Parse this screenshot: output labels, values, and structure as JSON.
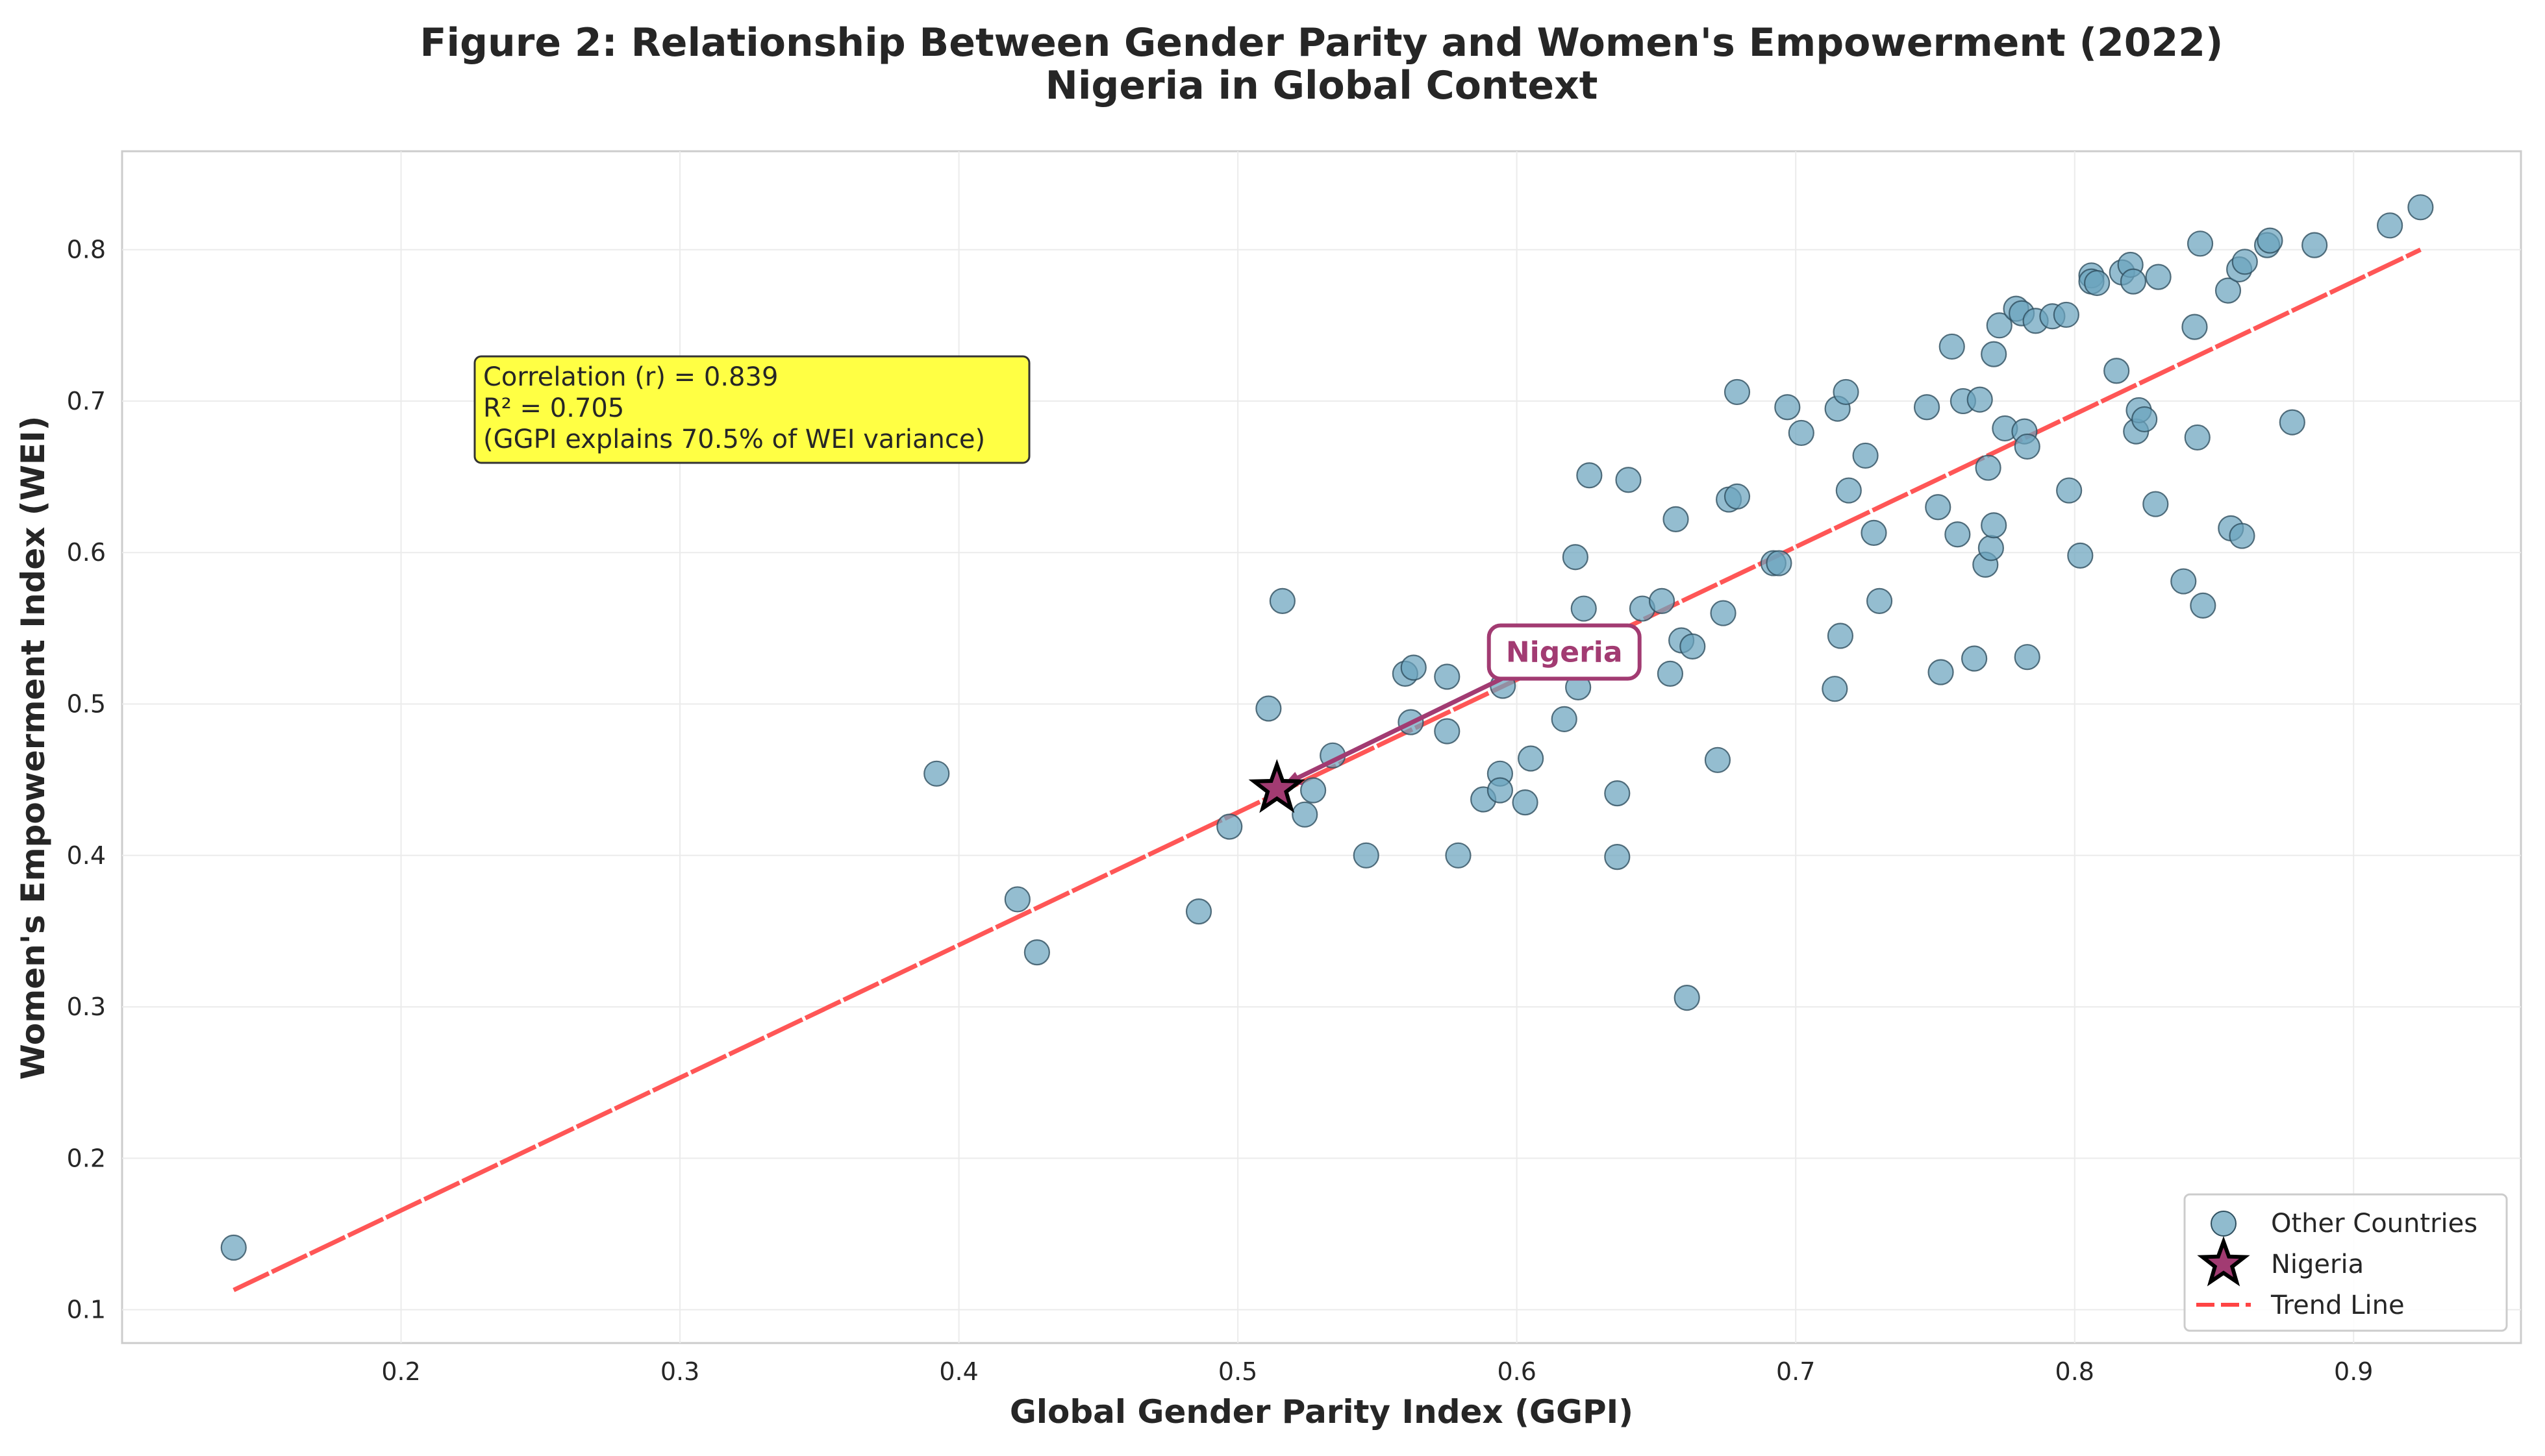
{
  "chart_data": {
    "type": "scatter",
    "title": "Figure 2: Relationship Between Gender Parity and Women's Empowerment (2022)",
    "subtitle": "Nigeria in Global Context",
    "xlabel": "Global Gender Parity Index (GGPI)",
    "ylabel": "Women's Empowerment Index (WEI)",
    "xlim": [
      0.1,
      0.96
    ],
    "ylim": [
      0.078,
      0.865
    ],
    "xticks": [
      0.2,
      0.3,
      0.4,
      0.5,
      0.6,
      0.7,
      0.8,
      0.9
    ],
    "xtick_labels": [
      "0.2",
      "0.3",
      "0.4",
      "0.5",
      "0.6",
      "0.7",
      "0.8",
      "0.9"
    ],
    "yticks": [
      0.1,
      0.2,
      0.3,
      0.4,
      0.5,
      0.6,
      0.7,
      0.8
    ],
    "ytick_labels": [
      "0.1",
      "0.2",
      "0.3",
      "0.4",
      "0.5",
      "0.6",
      "0.7",
      "0.8"
    ],
    "grid": true,
    "series": [
      {
        "name": "Other Countries",
        "color": "#6ba4be",
        "points": [
          [
            0.14,
            0.141
          ],
          [
            0.392,
            0.454
          ],
          [
            0.421,
            0.371
          ],
          [
            0.428,
            0.336
          ],
          [
            0.486,
            0.363
          ],
          [
            0.497,
            0.419
          ],
          [
            0.511,
            0.497
          ],
          [
            0.516,
            0.568
          ],
          [
            0.524,
            0.427
          ],
          [
            0.527,
            0.443
          ],
          [
            0.534,
            0.466
          ],
          [
            0.546,
            0.4
          ],
          [
            0.56,
            0.52
          ],
          [
            0.563,
            0.524
          ],
          [
            0.562,
            0.488
          ],
          [
            0.575,
            0.518
          ],
          [
            0.575,
            0.482
          ],
          [
            0.579,
            0.4
          ],
          [
            0.588,
            0.437
          ],
          [
            0.594,
            0.454
          ],
          [
            0.594,
            0.443
          ],
          [
            0.595,
            0.512
          ],
          [
            0.603,
            0.435
          ],
          [
            0.605,
            0.464
          ],
          [
            0.617,
            0.49
          ],
          [
            0.621,
            0.597
          ],
          [
            0.622,
            0.511
          ],
          [
            0.624,
            0.563
          ],
          [
            0.626,
            0.651
          ],
          [
            0.636,
            0.441
          ],
          [
            0.636,
            0.399
          ],
          [
            0.64,
            0.648
          ],
          [
            0.645,
            0.563
          ],
          [
            0.652,
            0.568
          ],
          [
            0.655,
            0.52
          ],
          [
            0.657,
            0.622
          ],
          [
            0.659,
            0.542
          ],
          [
            0.663,
            0.538
          ],
          [
            0.661,
            0.306
          ],
          [
            0.672,
            0.463
          ],
          [
            0.674,
            0.56
          ],
          [
            0.676,
            0.635
          ],
          [
            0.679,
            0.637
          ],
          [
            0.679,
            0.706
          ],
          [
            0.692,
            0.593
          ],
          [
            0.694,
            0.593
          ],
          [
            0.697,
            0.696
          ],
          [
            0.702,
            0.679
          ],
          [
            0.714,
            0.51
          ],
          [
            0.715,
            0.695
          ],
          [
            0.716,
            0.545
          ],
          [
            0.718,
            0.706
          ],
          [
            0.719,
            0.641
          ],
          [
            0.725,
            0.664
          ],
          [
            0.728,
            0.613
          ],
          [
            0.73,
            0.568
          ],
          [
            0.747,
            0.696
          ],
          [
            0.751,
            0.63
          ],
          [
            0.752,
            0.521
          ],
          [
            0.756,
            0.736
          ],
          [
            0.758,
            0.612
          ],
          [
            0.76,
            0.7
          ],
          [
            0.764,
            0.53
          ],
          [
            0.766,
            0.701
          ],
          [
            0.768,
            0.592
          ],
          [
            0.769,
            0.656
          ],
          [
            0.77,
            0.603
          ],
          [
            0.771,
            0.618
          ],
          [
            0.771,
            0.731
          ],
          [
            0.773,
            0.75
          ],
          [
            0.775,
            0.682
          ],
          [
            0.779,
            0.761
          ],
          [
            0.781,
            0.758
          ],
          [
            0.782,
            0.68
          ],
          [
            0.783,
            0.531
          ],
          [
            0.783,
            0.67
          ],
          [
            0.786,
            0.753
          ],
          [
            0.792,
            0.756
          ],
          [
            0.797,
            0.757
          ],
          [
            0.798,
            0.641
          ],
          [
            0.802,
            0.598
          ],
          [
            0.806,
            0.783
          ],
          [
            0.806,
            0.779
          ],
          [
            0.808,
            0.778
          ],
          [
            0.815,
            0.72
          ],
          [
            0.817,
            0.785
          ],
          [
            0.82,
            0.79
          ],
          [
            0.821,
            0.779
          ],
          [
            0.822,
            0.68
          ],
          [
            0.823,
            0.694
          ],
          [
            0.825,
            0.688
          ],
          [
            0.829,
            0.632
          ],
          [
            0.83,
            0.782
          ],
          [
            0.839,
            0.581
          ],
          [
            0.843,
            0.749
          ],
          [
            0.844,
            0.676
          ],
          [
            0.845,
            0.804
          ],
          [
            0.846,
            0.565
          ],
          [
            0.856,
            0.616
          ],
          [
            0.855,
            0.773
          ],
          [
            0.859,
            0.787
          ],
          [
            0.86,
            0.611
          ],
          [
            0.861,
            0.792
          ],
          [
            0.869,
            0.803
          ],
          [
            0.87,
            0.806
          ],
          [
            0.878,
            0.686
          ],
          [
            0.886,
            0.803
          ],
          [
            0.913,
            0.816
          ],
          [
            0.924,
            0.828
          ]
        ]
      },
      {
        "name": "Nigeria",
        "color": "#a23b72",
        "marker": "star",
        "points": [
          [
            0.514,
            0.444
          ]
        ]
      },
      {
        "name": "Trend Line",
        "color": "#ff4444",
        "style": "dashed",
        "x": [
          0.14,
          0.924
        ],
        "y": [
          0.113,
          0.8
        ]
      }
    ],
    "annotations": {
      "nigeria_label": "Nigeria",
      "nigeria_label_position": [
        0.59,
        0.53
      ],
      "stats_lines": [
        "Correlation (r) = 0.839",
        "R² = 0.705",
        "(GGPI explains 70.5% of WEI variance)"
      ],
      "stats_anchor": [
        0.23,
        0.72
      ]
    },
    "legend": {
      "position": "bottom-right",
      "entries": [
        "Other Countries",
        "Nigeria",
        "Trend Line"
      ]
    },
    "colors": {
      "scatter_fill": "#6ba4be",
      "scatter_edge": "#2f4f5f",
      "nigeria": "#a23b72",
      "trend": "#ff4444",
      "stats_box": "#ffff44",
      "grid": "#ebebeb",
      "text": "#262626"
    }
  }
}
